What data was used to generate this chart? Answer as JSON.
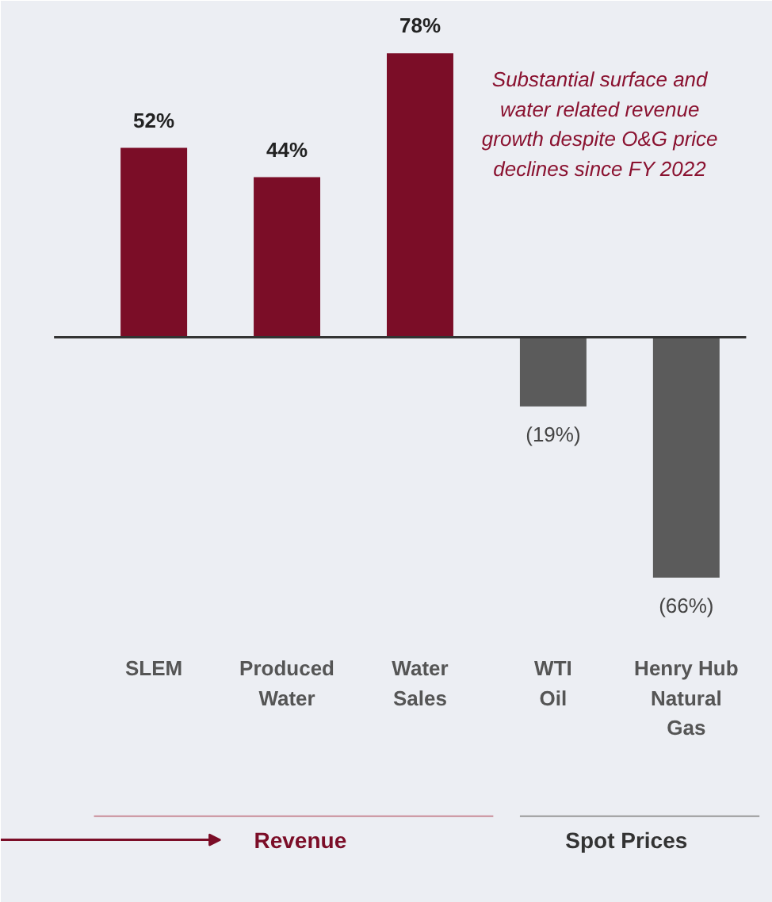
{
  "chart_data": {
    "type": "bar",
    "categories": [
      "SLEM",
      "Produced\nWater",
      "Water\nSales",
      "WTI\nOil",
      "Henry Hub\nNatural\nGas"
    ],
    "values": [
      52,
      44,
      78,
      -19,
      -66
    ],
    "colors": [
      "#7b0d27",
      "#7b0d27",
      "#7b0d27",
      "#5b5b5b",
      "#5b5b5b"
    ],
    "value_labels": [
      "52%",
      "44%",
      "78%",
      "(19%)",
      "(66%)"
    ],
    "annotations": [
      "Substantial surface and\nwater related revenue\ngrowth despite O&G price\ndeclines since FY 2022",
      "Revenue",
      "Spot Prices"
    ],
    "grid": false
  }
}
